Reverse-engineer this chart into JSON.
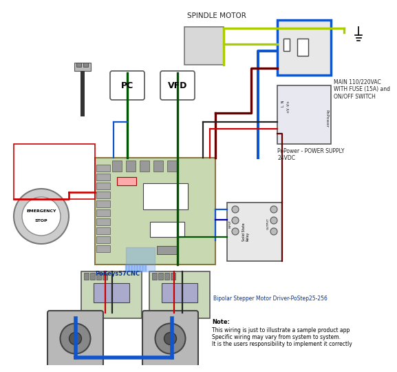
{
  "bg_color": "#ffffff",
  "labels": {
    "spindle_motor": "SPINDLE MOTOR",
    "pc": "PC",
    "vfd": "VFD",
    "pokeys": "PoKeys57CNC",
    "stepper_driver": "Bipolar Stepper Motor Driver-PoStep25-256",
    "main_power": "MAIN 110/220VAC\nWITH FUSE (15A) and\nON/OFF SWITCH",
    "power_supply": "PoPower - POWER SUPPLY\n24VDC",
    "note_title": "Note:",
    "note_line1": "This wiring is just to illustrate a sample product app",
    "note_line2": "Specific wiring may vary from system to system.",
    "note_line3": "It is the users responsibility to implement it correctly"
  },
  "colors": {
    "red": "#cc0000",
    "blue": "#0066cc",
    "dark_blue": "#0000aa",
    "green": "#006600",
    "black": "#111111",
    "dark_red": "#550000",
    "maroon": "#660000",
    "yellow_green": "#aacc00",
    "light_blue": "#6699ee",
    "gray": "#888888",
    "light_gray": "#cccccc",
    "dark_gray": "#555555",
    "board_green": "#c8d8b0",
    "driver_green": "#c8d8b8",
    "label_blue": "#003399",
    "wire_blue": "#1155cc",
    "wire_red": "#cc0000",
    "wire_black": "#222222",
    "wire_green": "#005500",
    "wire_darkred": "#550000"
  }
}
